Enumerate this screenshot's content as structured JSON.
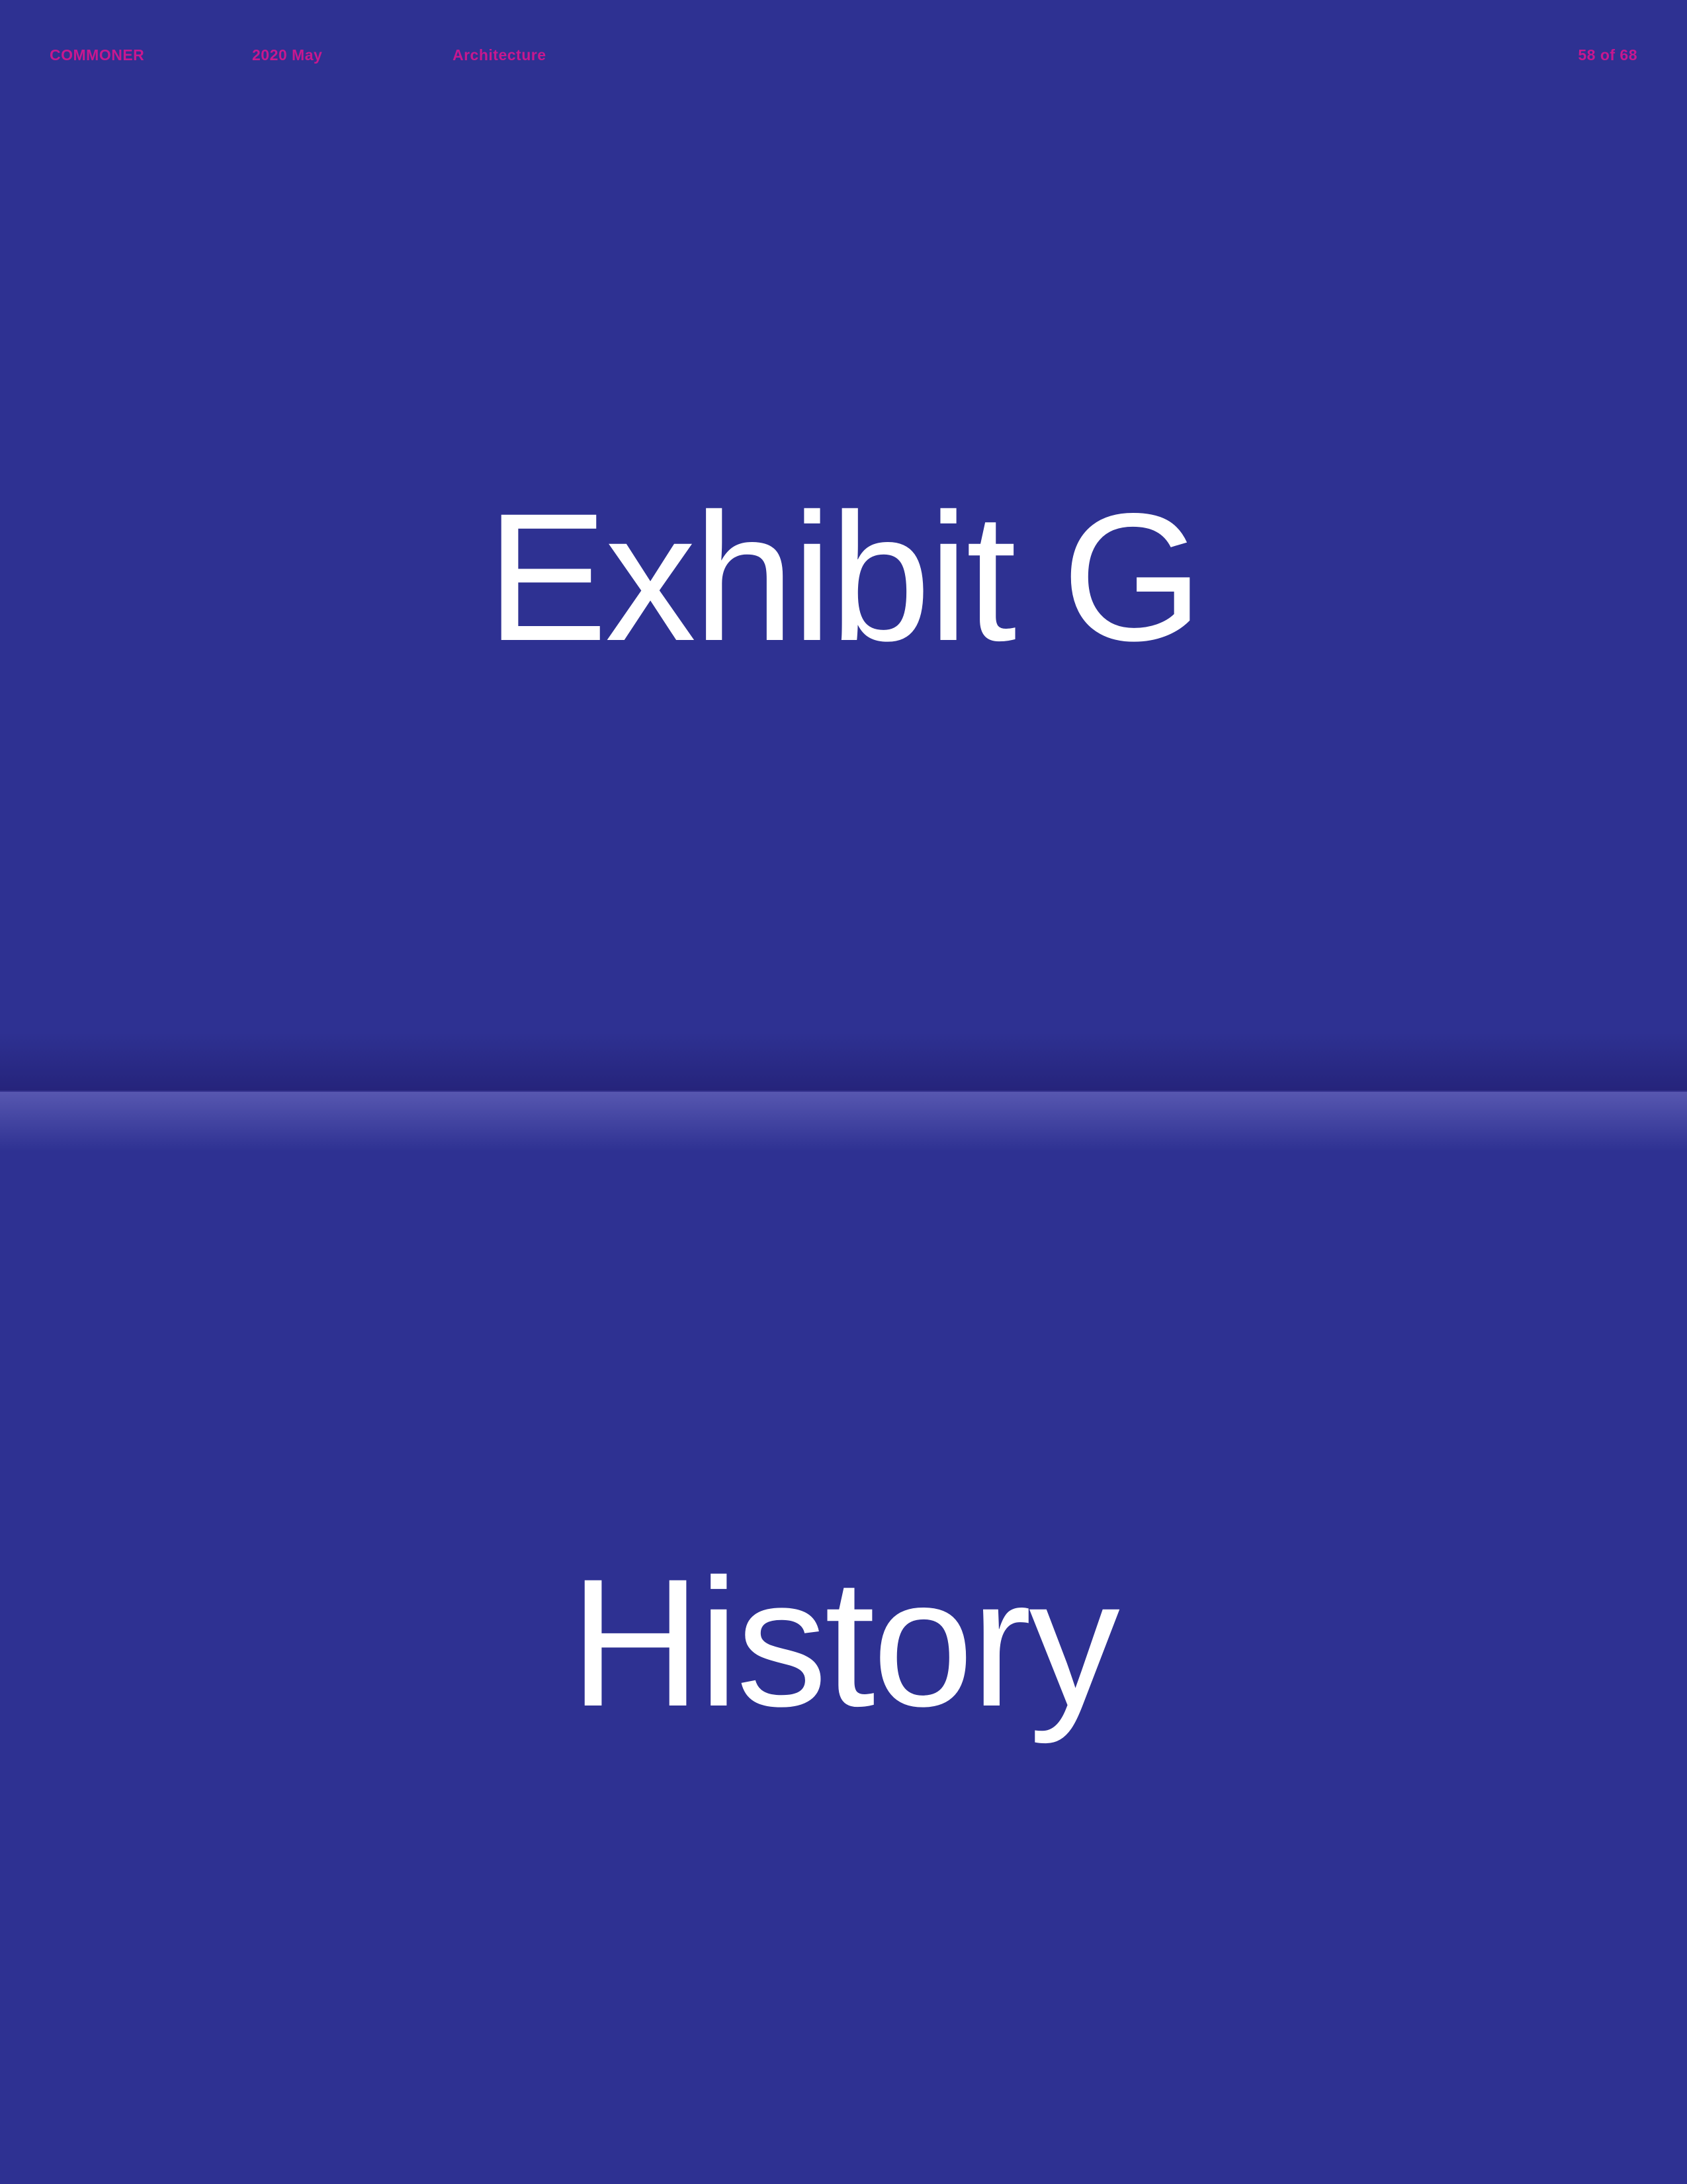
{
  "header": {
    "brand": "COMMONER",
    "issue": "2020 May",
    "section": "Architecture",
    "page_counter": "58 of 68"
  },
  "upper_panel": {
    "title": "Exhibit G"
  },
  "lower_panel": {
    "title": "History"
  },
  "colors": {
    "background": "#2e3192",
    "header_text": "#c8178f",
    "title_text": "#ffffff"
  }
}
